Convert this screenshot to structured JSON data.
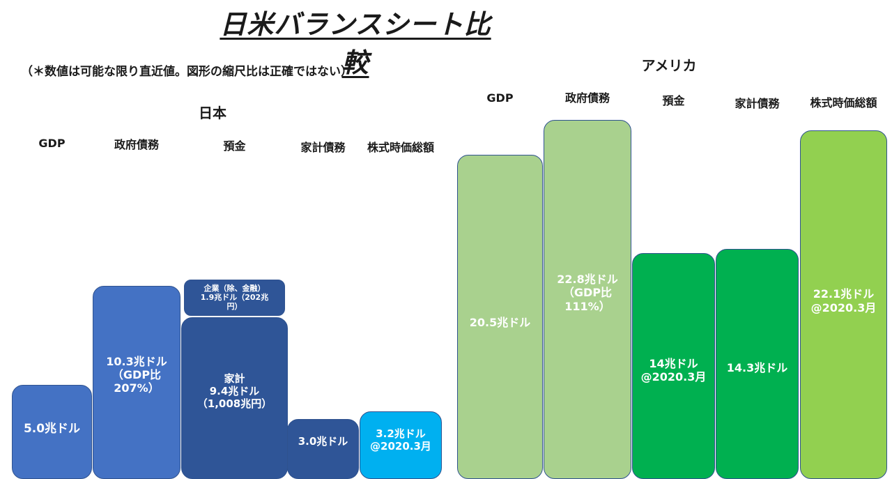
{
  "title": "日米バランスシート比較",
  "note": "（＊数値は可能な限り直近値。図形の縮尺比は正確ではない）",
  "chart_data": [
    {
      "type": "bar",
      "title": "日本",
      "categories": [
        "GDP",
        "政府債務",
        "預金",
        "家計債務",
        "株式時価総額"
      ],
      "series": [
        {
          "values": [
            5.0,
            10.3,
            11.3,
            3.0,
            3.2
          ],
          "units": "兆ドル",
          "labels": [
            "5.0兆ドル",
            "10.3兆ドル\n（GDP比\n207%）",
            "家計\n9.4兆ドル\n（1,008兆円）",
            "3.0兆ドル",
            "3.2兆ドル\n@2020.3月"
          ],
          "colors": [
            "#4472c4",
            "#4472c4",
            "#2f5597",
            "#2f5597",
            "#00b0f0"
          ]
        }
      ],
      "stacked_segment": {
        "category": "預金",
        "label": "企業（除、金融）\n1.9兆ドル（202兆\n円）",
        "value": 1.9,
        "base_value": 9.4,
        "color": "#2f5597"
      }
    },
    {
      "type": "bar",
      "title": "アメリカ",
      "categories": [
        "GDP",
        "政府債務",
        "預金",
        "家計債務",
        "株式時価総額"
      ],
      "series": [
        {
          "values": [
            20.5,
            22.8,
            14.0,
            14.3,
            22.1
          ],
          "units": "兆ドル",
          "labels": [
            "20.5兆ドル",
            "22.8兆ドル\n（GDP比\n111%）",
            "14兆ドル\n@2020.3月",
            "14.3兆ドル",
            "22.1兆ドル\n@2020.3月"
          ],
          "colors": [
            "#a9d18e",
            "#a9d18e",
            "#00b050",
            "#00b050",
            "#92d050"
          ]
        }
      ]
    }
  ]
}
